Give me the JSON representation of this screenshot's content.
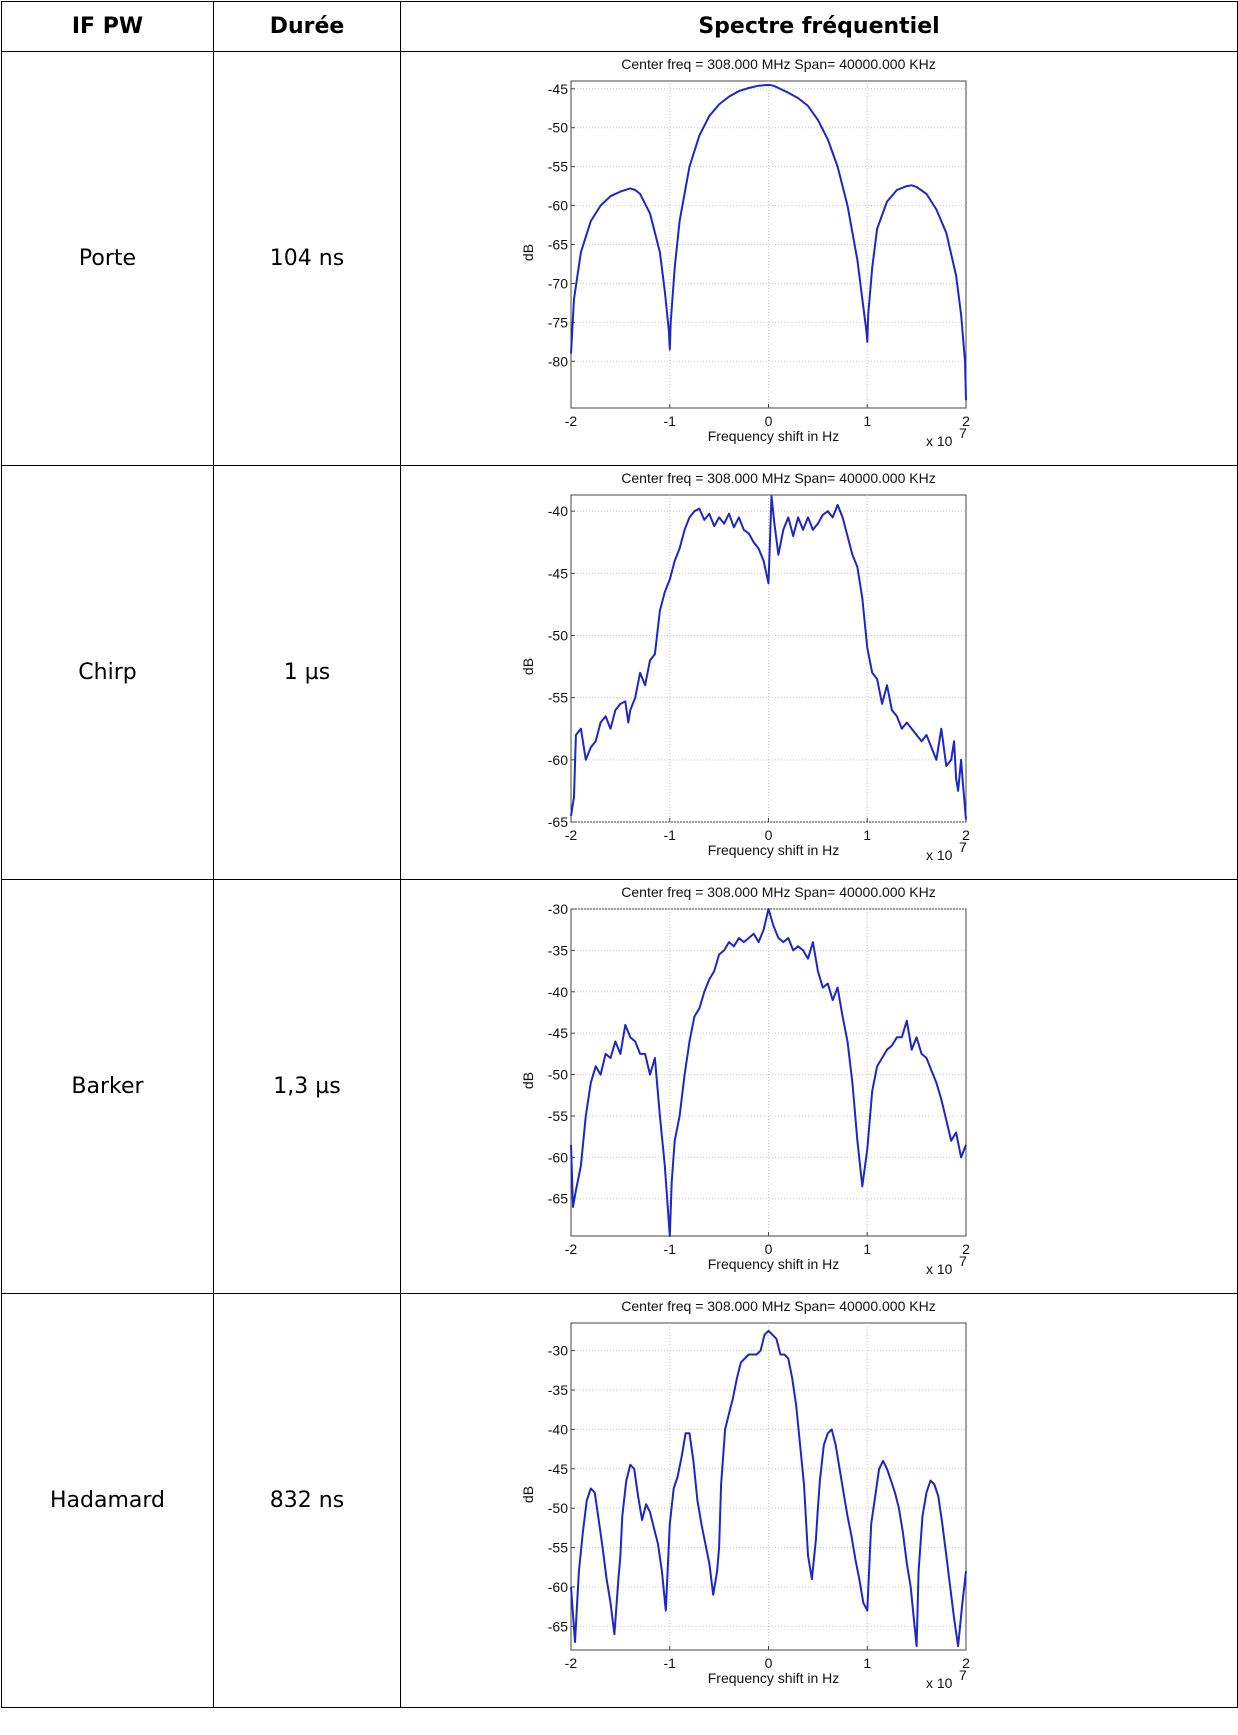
{
  "table": {
    "headers": [
      "IF PW",
      "Durée",
      "Spectre fréquentiel"
    ],
    "rows": [
      {
        "name": "Porte",
        "duration": "104 ns"
      },
      {
        "name": "Chirp",
        "duration": "1 µs"
      },
      {
        "name": "Barker",
        "duration": "1,3 µs"
      },
      {
        "name": "Hadamard",
        "duration": "832 ns"
      }
    ]
  },
  "chart_data": [
    {
      "type": "line",
      "title": "Center freq = 308.000 MHz Span= 40000.000 KHz",
      "xlabel": "Frequency shift in Hz",
      "ylabel": "dB",
      "x_multiplier": "x 10",
      "x_exponent": "7",
      "xlim": [
        -2,
        2
      ],
      "ylim": [
        -86,
        -44
      ],
      "xticks": [
        -2,
        -1,
        0,
        1,
        2
      ],
      "yticks": [
        -45,
        -50,
        -55,
        -60,
        -65,
        -70,
        -75,
        -80
      ],
      "grid": true,
      "series": [
        {
          "color": "#1f26c4",
          "x": [
            -2.0,
            -1.97,
            -1.9,
            -1.8,
            -1.7,
            -1.6,
            -1.5,
            -1.4,
            -1.35,
            -1.3,
            -1.2,
            -1.1,
            -1.05,
            -1.01,
            -1.0,
            -0.99,
            -0.95,
            -0.9,
            -0.8,
            -0.7,
            -0.6,
            -0.5,
            -0.4,
            -0.3,
            -0.2,
            -0.1,
            0.0,
            0.05,
            0.1,
            0.2,
            0.3,
            0.4,
            0.5,
            0.6,
            0.7,
            0.8,
            0.9,
            0.95,
            0.99,
            1.0,
            1.01,
            1.05,
            1.1,
            1.2,
            1.3,
            1.4,
            1.45,
            1.5,
            1.6,
            1.7,
            1.8,
            1.9,
            1.95,
            1.99,
            2.0
          ],
          "y": [
            -79,
            -72,
            -66,
            -62,
            -60,
            -58.8,
            -58.2,
            -57.8,
            -58.0,
            -58.5,
            -61,
            -66,
            -71,
            -76,
            -78.5,
            -75,
            -68,
            -62,
            -55,
            -51,
            -48.5,
            -47,
            -46,
            -45.3,
            -44.9,
            -44.6,
            -44.5,
            -44.6,
            -44.9,
            -45.5,
            -46.2,
            -47.2,
            -49,
            -51.5,
            -55,
            -60,
            -67,
            -72,
            -76,
            -77.5,
            -74,
            -68,
            -63,
            -59.5,
            -58,
            -57.5,
            -57.4,
            -57.6,
            -58.5,
            -60.5,
            -63.5,
            -69,
            -74,
            -80,
            -85
          ]
        }
      ]
    },
    {
      "type": "line",
      "title": "Center freq = 308.000 MHz Span= 40000.000 KHz",
      "xlabel": "Frequency shift in Hz",
      "ylabel": "dB",
      "x_multiplier": "x 10",
      "x_exponent": "7",
      "xlim": [
        -2,
        2
      ],
      "ylim": [
        -65,
        -38.7
      ],
      "xticks": [
        -2,
        -1,
        0,
        1,
        2
      ],
      "yticks": [
        -40,
        -45,
        -50,
        -55,
        -60,
        -65
      ],
      "grid": true,
      "series": [
        {
          "color": "#1f26c4",
          "x": [
            -2.0,
            -1.97,
            -1.95,
            -1.9,
            -1.85,
            -1.8,
            -1.75,
            -1.7,
            -1.65,
            -1.6,
            -1.55,
            -1.5,
            -1.45,
            -1.42,
            -1.4,
            -1.35,
            -1.3,
            -1.25,
            -1.2,
            -1.15,
            -1.1,
            -1.05,
            -1.0,
            -0.95,
            -0.9,
            -0.85,
            -0.8,
            -0.75,
            -0.7,
            -0.65,
            -0.6,
            -0.55,
            -0.5,
            -0.45,
            -0.4,
            -0.35,
            -0.3,
            -0.25,
            -0.2,
            -0.15,
            -0.1,
            -0.05,
            0.0,
            0.03,
            0.06,
            0.1,
            0.15,
            0.2,
            0.25,
            0.3,
            0.35,
            0.4,
            0.45,
            0.5,
            0.55,
            0.6,
            0.65,
            0.7,
            0.75,
            0.8,
            0.85,
            0.9,
            0.95,
            1.0,
            1.05,
            1.1,
            1.15,
            1.2,
            1.25,
            1.3,
            1.35,
            1.4,
            1.45,
            1.5,
            1.55,
            1.6,
            1.65,
            1.7,
            1.75,
            1.8,
            1.85,
            1.88,
            1.9,
            1.92,
            1.95,
            1.97,
            2.0
          ],
          "y": [
            -64.5,
            -63,
            -58,
            -57.5,
            -60,
            -59,
            -58.5,
            -57,
            -56.5,
            -57.5,
            -56,
            -55.5,
            -55.3,
            -57,
            -56,
            -55,
            -53,
            -54,
            -52,
            -51.5,
            -48,
            -46.5,
            -45.5,
            -44,
            -43,
            -41.5,
            -40.5,
            -40,
            -39.8,
            -40.7,
            -40.2,
            -41.2,
            -40.5,
            -41,
            -40.2,
            -41.3,
            -40.5,
            -41.5,
            -41.8,
            -42.5,
            -43,
            -44,
            -45.8,
            -38.8,
            -41,
            -43.5,
            -41.5,
            -40.5,
            -42,
            -40.5,
            -41.5,
            -40.5,
            -41.5,
            -41,
            -40.3,
            -40,
            -40.5,
            -39.5,
            -40.5,
            -42,
            -43.5,
            -44.5,
            -47,
            -51,
            -53,
            -53.5,
            -55.5,
            -54,
            -56,
            -56.5,
            -57.5,
            -57,
            -57.5,
            -58,
            -58.5,
            -58,
            -59,
            -60,
            -57.5,
            -60.5,
            -60,
            -58.5,
            -61.5,
            -62.5,
            -60,
            -62,
            -64.8
          ]
        }
      ]
    },
    {
      "type": "line",
      "title": "Center freq = 308.000 MHz Span= 40000.000 KHz",
      "xlabel": "Frequency shift in Hz",
      "ylabel": "dB",
      "x_multiplier": "x 10",
      "x_exponent": "7",
      "xlim": [
        -2,
        2
      ],
      "ylim": [
        -69.5,
        -30
      ],
      "xticks": [
        -2,
        -1,
        0,
        1,
        2
      ],
      "yticks": [
        -30,
        -35,
        -40,
        -45,
        -50,
        -55,
        -60,
        -65
      ],
      "grid": true,
      "series": [
        {
          "color": "#1f26c4",
          "x": [
            -2.0,
            -1.98,
            -1.95,
            -1.9,
            -1.85,
            -1.8,
            -1.75,
            -1.7,
            -1.65,
            -1.6,
            -1.55,
            -1.5,
            -1.45,
            -1.4,
            -1.35,
            -1.3,
            -1.25,
            -1.2,
            -1.15,
            -1.1,
            -1.05,
            -1.0,
            -0.98,
            -0.95,
            -0.9,
            -0.85,
            -0.8,
            -0.75,
            -0.7,
            -0.65,
            -0.6,
            -0.55,
            -0.5,
            -0.45,
            -0.4,
            -0.35,
            -0.3,
            -0.25,
            -0.2,
            -0.15,
            -0.1,
            -0.05,
            0.0,
            0.05,
            0.1,
            0.15,
            0.2,
            0.25,
            0.3,
            0.35,
            0.4,
            0.45,
            0.5,
            0.55,
            0.6,
            0.65,
            0.7,
            0.75,
            0.8,
            0.85,
            0.9,
            0.95,
            1.0,
            1.05,
            1.1,
            1.15,
            1.2,
            1.25,
            1.3,
            1.35,
            1.4,
            1.45,
            1.5,
            1.55,
            1.6,
            1.65,
            1.7,
            1.75,
            1.8,
            1.85,
            1.9,
            1.95,
            2.0
          ],
          "y": [
            -58.5,
            -66,
            -64,
            -61,
            -55,
            -51,
            -49,
            -50,
            -47.5,
            -48,
            -46,
            -47.5,
            -44,
            -45.5,
            -46,
            -47.5,
            -47.5,
            -50,
            -48,
            -55,
            -61,
            -69.5,
            -63,
            -58,
            -55,
            -50,
            -46,
            -43,
            -42,
            -40,
            -38.5,
            -37.5,
            -35.5,
            -35,
            -34,
            -34.5,
            -33.5,
            -34,
            -33.5,
            -33,
            -34,
            -32.5,
            -30,
            -32,
            -33.5,
            -34,
            -33.5,
            -35,
            -34.5,
            -35,
            -36,
            -34,
            -37.5,
            -39.5,
            -39,
            -41,
            -39.5,
            -43,
            -46,
            -51,
            -58,
            -63.5,
            -59,
            -52,
            -49,
            -48,
            -47,
            -46.5,
            -45.5,
            -45.5,
            -43.5,
            -47,
            -45.5,
            -47.5,
            -48,
            -49.5,
            -51,
            -53,
            -55.5,
            -58,
            -57,
            -60,
            -58.5
          ]
        }
      ]
    },
    {
      "type": "line",
      "title": "Center freq = 308.000 MHz Span= 40000.000 KHz",
      "xlabel": "Frequency shift in Hz",
      "ylabel": "dB",
      "x_multiplier": "x 10",
      "x_exponent": "7",
      "xlim": [
        -2,
        2
      ],
      "ylim": [
        -68,
        -26.5
      ],
      "xticks": [
        -2,
        -1,
        0,
        1,
        2
      ],
      "yticks": [
        -30,
        -35,
        -40,
        -45,
        -50,
        -55,
        -60,
        -65
      ],
      "grid": true,
      "series": [
        {
          "color": "#1f26c4",
          "x": [
            -2.0,
            -1.96,
            -1.92,
            -1.88,
            -1.84,
            -1.8,
            -1.76,
            -1.72,
            -1.68,
            -1.64,
            -1.6,
            -1.56,
            -1.52,
            -1.5,
            -1.48,
            -1.44,
            -1.4,
            -1.36,
            -1.32,
            -1.28,
            -1.24,
            -1.2,
            -1.16,
            -1.12,
            -1.08,
            -1.04,
            -1.0,
            -0.96,
            -0.92,
            -0.88,
            -0.84,
            -0.8,
            -0.76,
            -0.72,
            -0.68,
            -0.64,
            -0.6,
            -0.56,
            -0.52,
            -0.5,
            -0.48,
            -0.44,
            -0.4,
            -0.36,
            -0.32,
            -0.28,
            -0.24,
            -0.2,
            -0.16,
            -0.12,
            -0.08,
            -0.04,
            0.0,
            0.04,
            0.08,
            0.12,
            0.16,
            0.2,
            0.24,
            0.28,
            0.32,
            0.36,
            0.4,
            0.44,
            0.48,
            0.5,
            0.52,
            0.56,
            0.6,
            0.64,
            0.68,
            0.72,
            0.76,
            0.8,
            0.84,
            0.88,
            0.92,
            0.96,
            1.0,
            1.04,
            1.08,
            1.12,
            1.16,
            1.2,
            1.24,
            1.28,
            1.32,
            1.36,
            1.4,
            1.44,
            1.48,
            1.5,
            1.52,
            1.56,
            1.6,
            1.64,
            1.68,
            1.72,
            1.76,
            1.8,
            1.84,
            1.88,
            1.92,
            1.96,
            2.0
          ],
          "y": [
            -60,
            -67,
            -58,
            -53,
            -49,
            -47.5,
            -48,
            -51.5,
            -55,
            -59,
            -62,
            -66,
            -59,
            -56,
            -51,
            -46.5,
            -44.5,
            -45,
            -48.5,
            -51.5,
            -49.5,
            -50.5,
            -52.5,
            -54.5,
            -58,
            -63,
            -52,
            -47.5,
            -46,
            -43.5,
            -40.5,
            -40.5,
            -44,
            -49,
            -52,
            -54.5,
            -57,
            -61,
            -58,
            -55,
            -47,
            -40,
            -38,
            -36,
            -33.5,
            -31.5,
            -31,
            -30.5,
            -30.5,
            -30.5,
            -30,
            -28,
            -27.5,
            -28,
            -28.5,
            -30.5,
            -30.5,
            -31,
            -33.5,
            -37,
            -42,
            -47,
            -56,
            -59,
            -54,
            -50,
            -46.5,
            -42,
            -40.5,
            -40,
            -42,
            -45,
            -48,
            -51,
            -53.5,
            -56.5,
            -59,
            -62,
            -63,
            -52,
            -48.5,
            -45,
            -44,
            -45,
            -46.5,
            -48,
            -50,
            -53,
            -57,
            -60,
            -65,
            -67.5,
            -58,
            -51,
            -48,
            -46.5,
            -47,
            -48.5,
            -52,
            -56,
            -60,
            -64,
            -67.5,
            -62.5,
            -58
          ]
        }
      ]
    }
  ]
}
